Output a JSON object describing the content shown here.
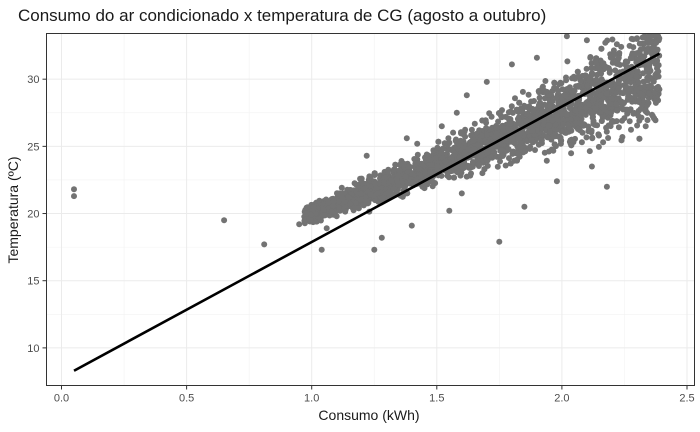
{
  "chart_data": {
    "type": "scatter",
    "title": "Consumo do ar condicionado x temperatura de CG (agosto a outubro)",
    "xlabel": "Consumo (kWh)",
    "ylabel": "Temperatura (ºC)",
    "xlim": [
      -0.06,
      2.53
    ],
    "ylim": [
      7.2,
      33.4
    ],
    "x_ticks": [
      0.0,
      0.5,
      1.0,
      1.5,
      2.0,
      2.5
    ],
    "x_tick_labels": [
      "0.0",
      "0.5",
      "1.0",
      "1.5",
      "2.0",
      "2.5"
    ],
    "y_ticks": [
      10,
      15,
      20,
      25,
      30
    ],
    "y_tick_labels": [
      "10",
      "15",
      "20",
      "25",
      "30"
    ],
    "grid": true,
    "legend": "none",
    "point_color": "#737373",
    "line_color": "#000000",
    "series": [
      {
        "kind": "points",
        "approx_count": 2600,
        "points": [
          [
            0.05,
            21.8
          ],
          [
            0.05,
            21.3
          ],
          [
            0.65,
            19.5
          ],
          [
            0.81,
            17.7
          ],
          [
            0.95,
            19.2
          ],
          [
            1.02,
            19.4
          ],
          [
            1.04,
            17.3
          ],
          [
            1.06,
            18.9
          ],
          [
            1.1,
            19.8
          ],
          [
            1.12,
            20.4
          ],
          [
            1.15,
            21.5
          ],
          [
            1.2,
            22.6
          ],
          [
            1.22,
            24.3
          ],
          [
            1.25,
            17.3
          ],
          [
            1.28,
            18.2
          ],
          [
            1.3,
            21.9
          ],
          [
            1.35,
            23.2
          ],
          [
            1.38,
            25.6
          ],
          [
            1.4,
            19.1
          ],
          [
            1.45,
            22.4
          ],
          [
            1.5,
            24.5
          ],
          [
            1.52,
            26.5
          ],
          [
            1.55,
            20.2
          ],
          [
            1.58,
            27.5
          ],
          [
            1.6,
            21.5
          ],
          [
            1.62,
            28.8
          ],
          [
            1.65,
            23.7
          ],
          [
            1.7,
            29.8
          ],
          [
            1.72,
            24.6
          ],
          [
            1.75,
            17.9
          ],
          [
            1.8,
            31.1
          ],
          [
            1.82,
            26.2
          ],
          [
            1.85,
            20.5
          ],
          [
            1.9,
            31.6
          ],
          [
            1.95,
            28.2
          ],
          [
            1.98,
            22.4
          ],
          [
            2.02,
            33.2
          ],
          [
            2.05,
            30.1
          ],
          [
            2.08,
            25.3
          ],
          [
            2.1,
            32.9
          ],
          [
            2.12,
            23.5
          ],
          [
            2.15,
            29.6
          ],
          [
            2.18,
            22.0
          ],
          [
            2.22,
            32.6
          ],
          [
            2.25,
            27.1
          ],
          [
            2.28,
            31.8
          ],
          [
            2.3,
            29.2
          ],
          [
            2.34,
            31.2
          ],
          [
            2.36,
            28.8
          ],
          [
            2.38,
            30.8
          ]
        ]
      },
      {
        "kind": "regression-line",
        "x": [
          0.05,
          2.39
        ],
        "y": [
          8.3,
          31.9
        ]
      }
    ]
  }
}
